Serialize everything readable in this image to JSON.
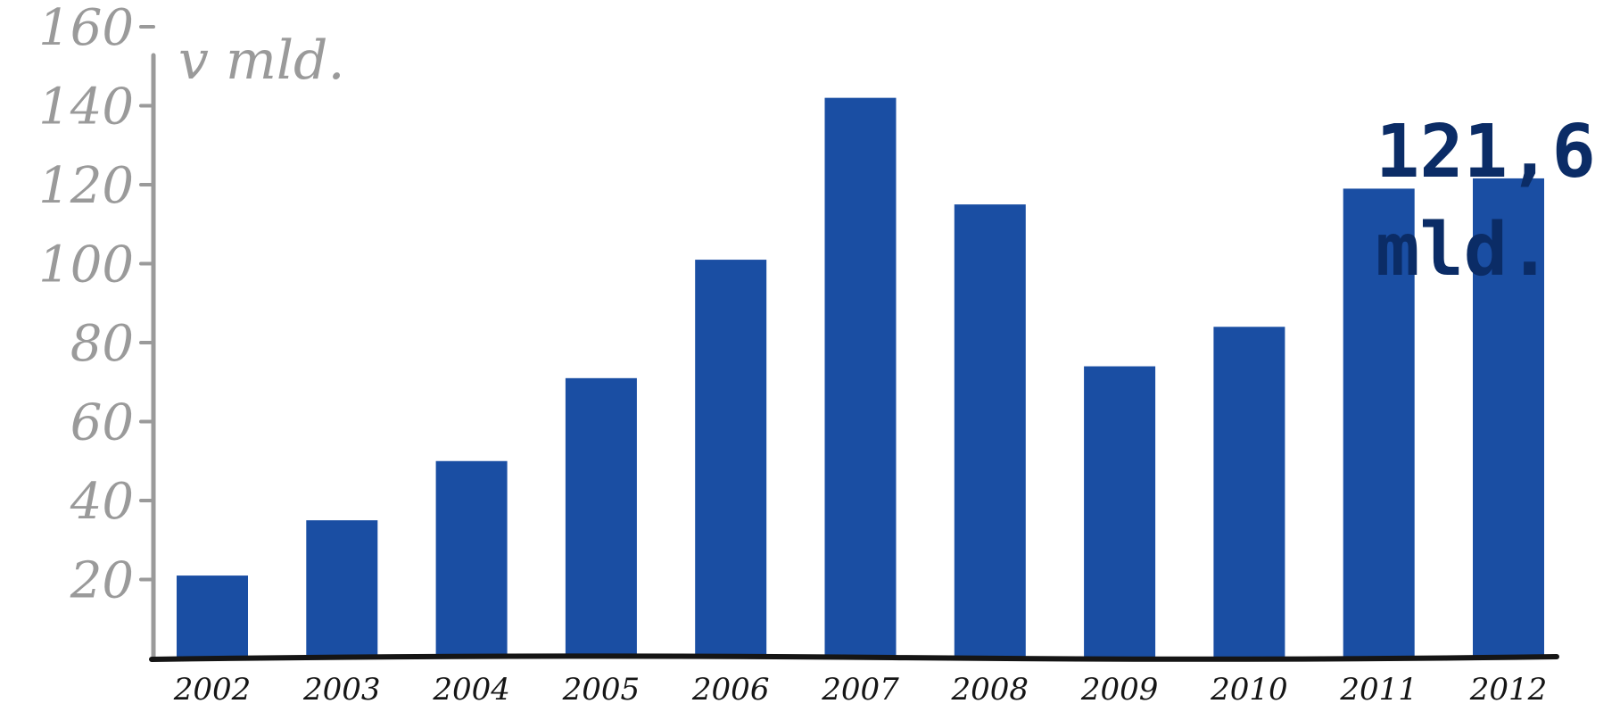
{
  "chart_data": {
    "type": "bar",
    "unit_label": "v mld.",
    "categories": [
      "2002",
      "2003",
      "2004",
      "2005",
      "2006",
      "2007",
      "2008",
      "2009",
      "2010",
      "2011",
      "2012"
    ],
    "values": [
      21,
      35,
      50,
      71,
      101,
      142,
      115,
      74,
      84,
      119,
      121.6
    ],
    "y_ticks": [
      "20",
      "40",
      "60",
      "80",
      "100",
      "120",
      "140",
      "160"
    ],
    "ylim": [
      0,
      160
    ],
    "callout": {
      "line1": "121,6",
      "line2": "mld."
    },
    "colors": {
      "bar": "#1a4ea3",
      "axis_y": "#9a9a9a",
      "axis_x": "#151515",
      "callout": "#0b2c66"
    },
    "grid": false,
    "legend": "none"
  }
}
